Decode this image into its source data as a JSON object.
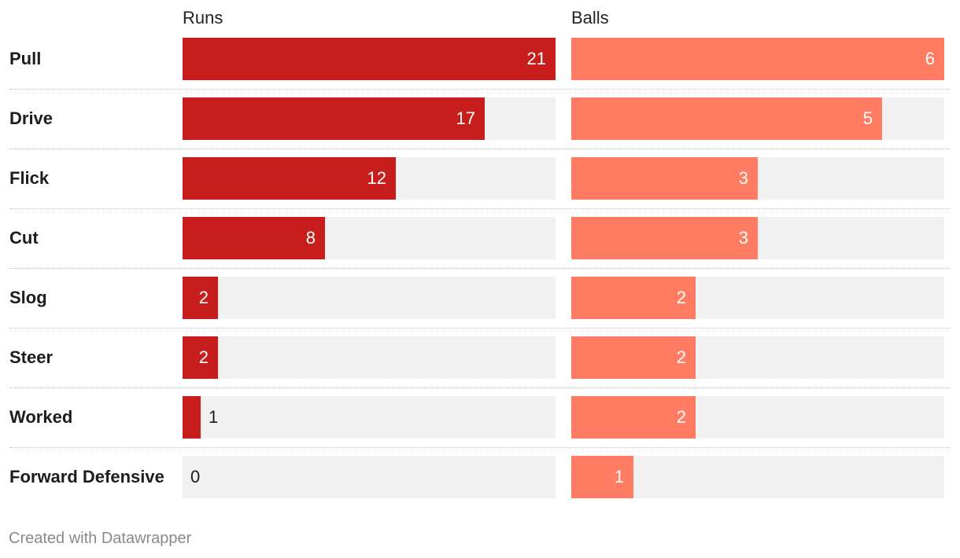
{
  "chart_data": {
    "type": "bar",
    "orientation": "horizontal",
    "categories": [
      "Pull",
      "Drive",
      "Flick",
      "Cut",
      "Slog",
      "Steer",
      "Worked",
      "Forward Defensive"
    ],
    "series": [
      {
        "name": "Runs",
        "values": [
          21,
          17,
          12,
          8,
          2,
          2,
          1,
          0
        ],
        "color": "#c71e1d",
        "max": 21
      },
      {
        "name": "Balls",
        "values": [
          6,
          5,
          3,
          3,
          2,
          2,
          2,
          1
        ],
        "color": "#ff7c62",
        "max": 6
      }
    ],
    "title": "",
    "xlabel": "",
    "ylabel": "",
    "track_color": "#f1f1f1",
    "grid": false,
    "legend": "none"
  },
  "footer": "Created with Datawrapper"
}
